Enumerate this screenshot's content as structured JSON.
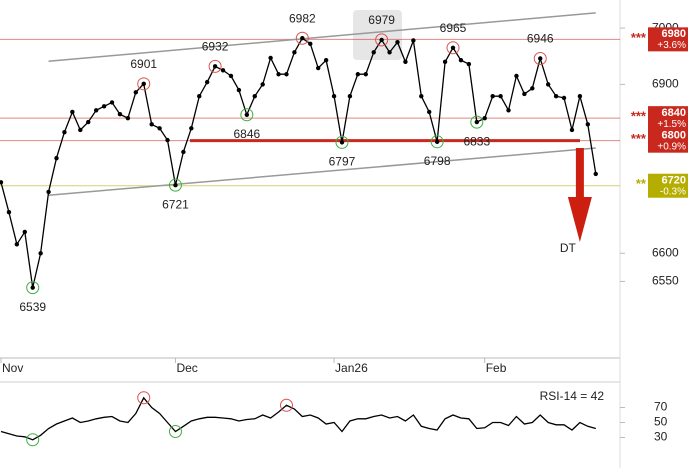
{
  "chart_data": [
    {
      "type": "line",
      "categories": [
        "Nov",
        null,
        null,
        null,
        null,
        null,
        null,
        null,
        null,
        null,
        null,
        null,
        null,
        null,
        null,
        null,
        null,
        null,
        null,
        null,
        null,
        null,
        "Dec",
        null,
        null,
        null,
        null,
        null,
        null,
        null,
        null,
        null,
        null,
        null,
        null,
        null,
        null,
        null,
        null,
        null,
        null,
        null,
        "Jan26",
        null,
        null,
        null,
        null,
        null,
        null,
        null,
        null,
        null,
        null,
        null,
        null,
        null,
        null,
        null,
        null,
        null,
        null,
        "Feb",
        null,
        null,
        null,
        null,
        null,
        null,
        null,
        null,
        null,
        null,
        null,
        null,
        null,
        null
      ],
      "values": [
        6726,
        6673,
        6616,
        6638,
        6539,
        6600,
        6709,
        6769,
        6815,
        6851,
        6819,
        6833,
        6854,
        6861,
        6868,
        6847,
        6840,
        6886,
        6901,
        6829,
        6822,
        6801,
        6721,
        6780,
        6822,
        6879,
        6904,
        6932,
        6925,
        6915,
        6890,
        6846,
        6879,
        6900,
        6947,
        6918,
        6918,
        6957,
        6982,
        6972,
        6929,
        6943,
        6879,
        6797,
        6879,
        6918,
        6918,
        6957,
        6979,
        6957,
        6975,
        6940,
        6978,
        6879,
        6851,
        6798,
        6940,
        6965,
        6943,
        6936,
        6833,
        6840,
        6879,
        6879,
        6854,
        6915,
        6883,
        6893,
        6946,
        6900,
        6879,
        6876,
        6819,
        6879,
        6829,
        6741
      ],
      "color": "#000000",
      "ylim": [
        6414,
        7041
      ],
      "yticks": [
        6550,
        6600,
        6900,
        7000
      ],
      "highs": [
        18,
        27,
        38,
        48,
        57,
        68
      ],
      "lows": [
        4,
        22,
        31,
        43,
        55,
        60
      ],
      "high_color": "#d9534f",
      "low_color": "#3cb043",
      "levels": [
        {
          "value": 6980,
          "change": "+3.6%",
          "stars": "***",
          "color": "#c8281e"
        },
        {
          "value": 6840,
          "change": "+1.5%",
          "stars": "***",
          "color": "#c8281e"
        },
        {
          "value": 6800,
          "change": "+0.9%",
          "stars": "***",
          "color": "#c8281e"
        },
        {
          "value": 6720,
          "change": "-0.3%",
          "stars": "**",
          "color": "#b5ad00"
        }
      ],
      "trendlines": [
        {
          "values": [
            6941,
            7027
          ]
        },
        {
          "values": [
            6703,
            6787
          ]
        }
      ],
      "trendline_color": "#999999",
      "arrow": {
        "label": "DT",
        "from": 6787,
        "to": 6620,
        "color": "#cc1f10"
      }
    },
    {
      "type": "line",
      "title": "RSI-14 = 42",
      "values": [
        38,
        35,
        32,
        31,
        27,
        33,
        42,
        48,
        52,
        56,
        50,
        52,
        55,
        57,
        58,
        52,
        50,
        62,
        83,
        70,
        62,
        50,
        38,
        45,
        52,
        55,
        57,
        57,
        56,
        55,
        52,
        54,
        55,
        60,
        56,
        64,
        73,
        68,
        58,
        60,
        56,
        48,
        50,
        38,
        52,
        55,
        55,
        58,
        60,
        56,
        58,
        52,
        60,
        45,
        42,
        40,
        55,
        60,
        56,
        55,
        42,
        43,
        50,
        50,
        46,
        58,
        48,
        50,
        60,
        50,
        47,
        47,
        40,
        50,
        45,
        42
      ],
      "color": "#000000",
      "ylim": [
        0,
        100
      ],
      "yticks": [
        30,
        50,
        70
      ],
      "highs": [
        18,
        36
      ],
      "lows": [
        4,
        22
      ],
      "high_color": "#d9534f",
      "low_color": "#3cb043"
    }
  ]
}
